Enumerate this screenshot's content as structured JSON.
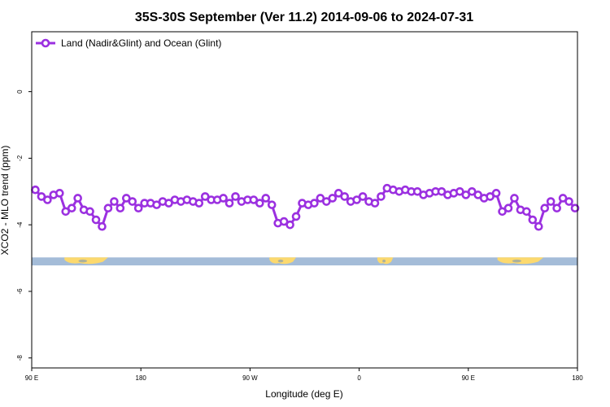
{
  "chart_data": {
    "type": "line",
    "title": "35S-30S September (Ver 11.2)   2014-09-06 to 2024-07-31",
    "xlabel": "Longitude (deg E)",
    "ylabel": "XCO2 - MLO trend (ppm)",
    "xlim": [
      90,
      540
    ],
    "ylim": [
      -8.3,
      1.8
    ],
    "x_ticks": [
      {
        "value": 90,
        "label": "90 E"
      },
      {
        "value": 180,
        "label": "180"
      },
      {
        "value": 270,
        "label": "90 W"
      },
      {
        "value": 360,
        "label": "0"
      },
      {
        "value": 450,
        "label": "90 E"
      },
      {
        "value": 540,
        "label": "180"
      }
    ],
    "y_ticks": [
      {
        "value": 0,
        "label": "0"
      },
      {
        "value": -2,
        "label": "-2"
      },
      {
        "value": -4,
        "label": "-4"
      },
      {
        "value": -6,
        "label": "-6"
      },
      {
        "value": -8,
        "label": "-8"
      }
    ],
    "legend": {
      "position": "top-left"
    },
    "series": [
      {
        "name": "Land (Nadir&Glint) and Ocean (Glint)",
        "color": "#9b30e0",
        "x": [
          93,
          98,
          103,
          108,
          113,
          118,
          123,
          128,
          133,
          138,
          143,
          148,
          153,
          158,
          163,
          168,
          173,
          178,
          183,
          188,
          193,
          198,
          203,
          208,
          213,
          218,
          223,
          228,
          233,
          238,
          243,
          248,
          253,
          258,
          263,
          268,
          273,
          278,
          283,
          288,
          293,
          298,
          303,
          308,
          313,
          318,
          323,
          328,
          333,
          338,
          343,
          348,
          353,
          358,
          363,
          368,
          373,
          378,
          383,
          388,
          393,
          398,
          403,
          408,
          413,
          418,
          423,
          428,
          433,
          438,
          443,
          448,
          453,
          458,
          463,
          468,
          473,
          478,
          483,
          488,
          493,
          498,
          503,
          508,
          513,
          518,
          523,
          528,
          533,
          538
        ],
        "y": [
          -2.95,
          -3.15,
          -3.25,
          -3.1,
          -3.05,
          -3.6,
          -3.5,
          -3.2,
          -3.55,
          -3.6,
          -3.85,
          -4.05,
          -3.5,
          -3.3,
          -3.5,
          -3.2,
          -3.3,
          -3.5,
          -3.35,
          -3.35,
          -3.4,
          -3.3,
          -3.35,
          -3.25,
          -3.3,
          -3.25,
          -3.3,
          -3.35,
          -3.15,
          -3.25,
          -3.25,
          -3.2,
          -3.35,
          -3.15,
          -3.3,
          -3.25,
          -3.25,
          -3.35,
          -3.2,
          -3.4,
          -3.95,
          -3.9,
          -4.0,
          -3.75,
          -3.35,
          -3.4,
          -3.35,
          -3.2,
          -3.3,
          -3.2,
          -3.05,
          -3.15,
          -3.3,
          -3.25,
          -3.15,
          -3.3,
          -3.35,
          -3.15,
          -2.9,
          -2.95,
          -3.0,
          -2.95,
          -3.0,
          -3.0,
          -3.1,
          -3.05,
          -3.0,
          -3.0,
          -3.1,
          -3.05,
          -3.0,
          -3.1,
          -3.0,
          -3.1,
          -3.2,
          -3.15,
          -3.05,
          -3.6,
          -3.5,
          -3.2,
          -3.55,
          -3.6,
          -3.85,
          -4.05,
          -3.5,
          -3.3,
          -3.5,
          -3.2,
          -3.3,
          -3.5
        ]
      }
    ],
    "land_strip": {
      "y_top": -4.98,
      "y_bottom": -5.22,
      "ocean_color": "#a4bcd8",
      "land_color": "#fcd96e",
      "shadow_color": "#6b8fbf",
      "land_ranges": [
        [
          117,
          153
        ],
        [
          286,
          308
        ],
        [
          375,
          388
        ],
        [
          474,
          512
        ]
      ]
    }
  }
}
